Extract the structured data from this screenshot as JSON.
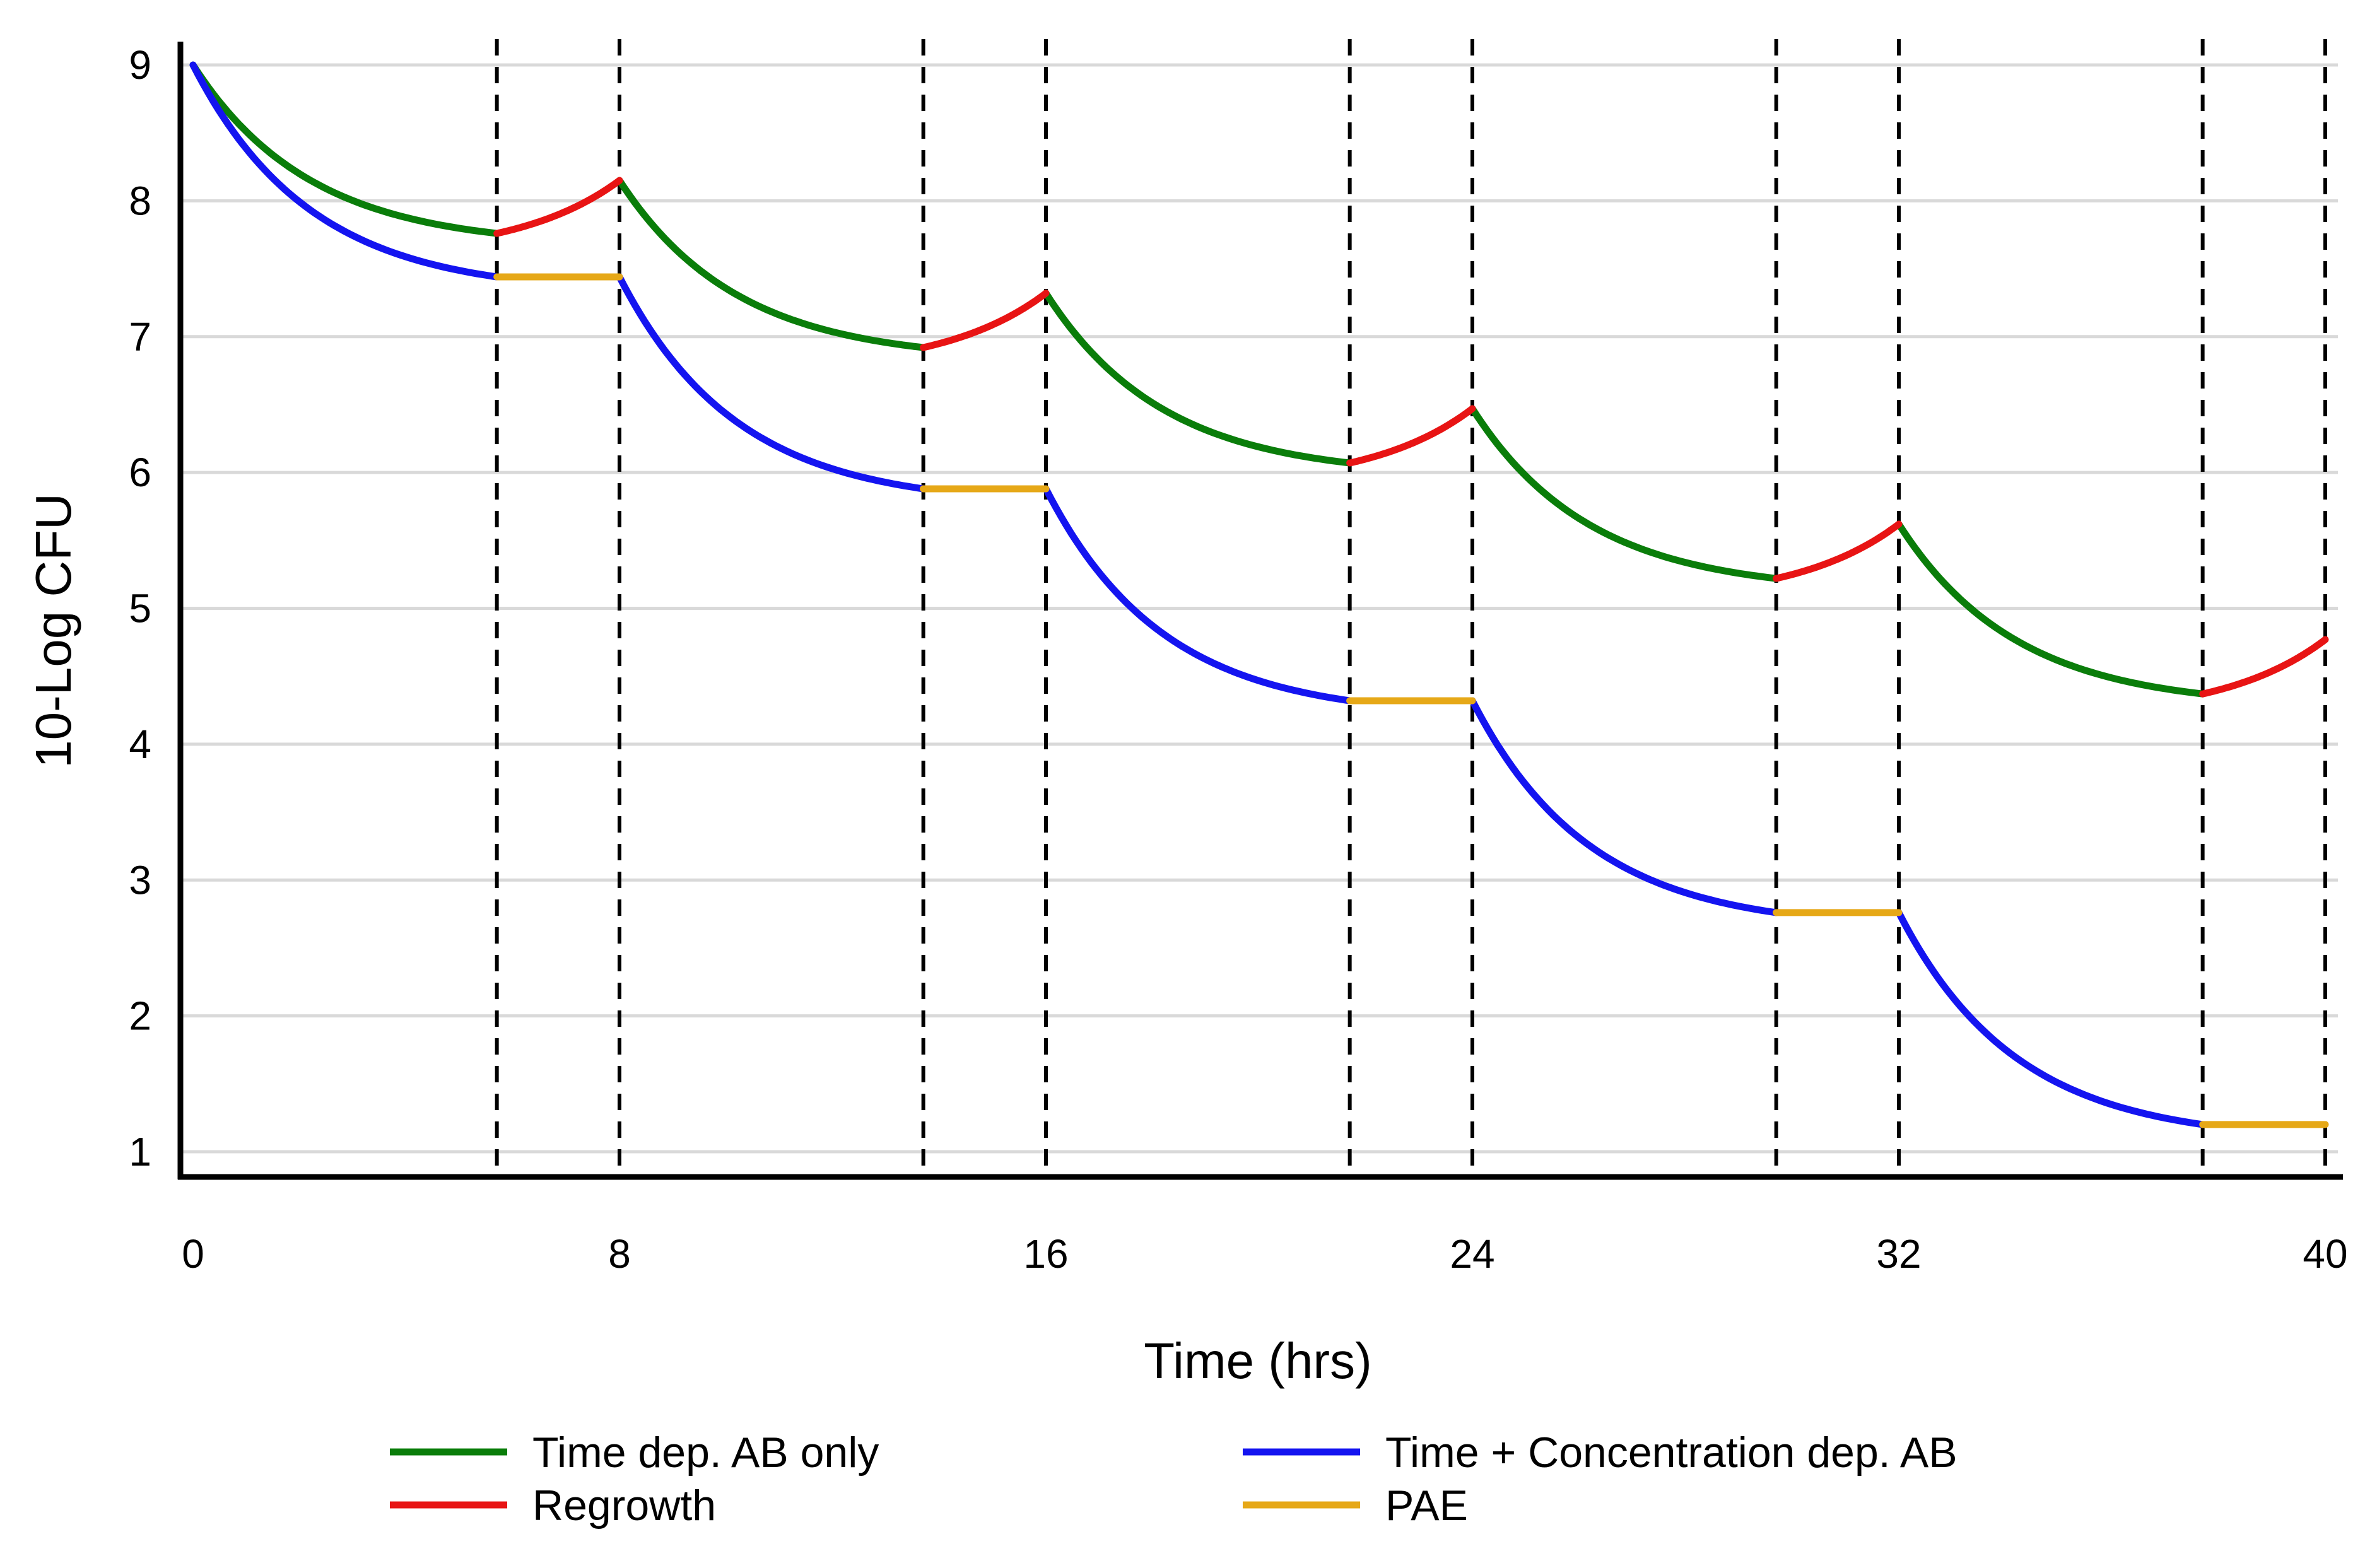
{
  "chart_data": {
    "type": "line",
    "title": "",
    "xlabel": "Time (hrs)",
    "ylabel": "10-Log CFU",
    "xlim": [
      0,
      40
    ],
    "ylim": [
      0.8,
      9.2
    ],
    "x_ticks": [
      0,
      8,
      16,
      24,
      32,
      40
    ],
    "x_tick_labels": [
      "0",
      "8",
      "16",
      "24",
      "32",
      "40"
    ],
    "y_ticks": [
      1,
      2,
      3,
      4,
      5,
      6,
      7,
      8,
      9
    ],
    "y_tick_labels": [
      "1",
      "2",
      "3",
      "4",
      "5",
      "6",
      "7",
      "8",
      "9"
    ],
    "grid": "horizontal",
    "vertical_markers": [
      5.7,
      8,
      13.7,
      16,
      21.7,
      24,
      29.7,
      32,
      37.7,
      40
    ],
    "colors": {
      "time_dep": "#0a7d0a",
      "regrowth": "#e81414",
      "time_conc": "#1414f0",
      "pae": "#e6a817",
      "grid": "#d9d9d9",
      "axis": "#000000"
    },
    "series": [
      {
        "name": "Time dep. AB only",
        "color_key": "time_dep",
        "segments": [
          {
            "start": [
              0,
              9.0
            ],
            "end": [
              5.7,
              7.76
            ],
            "shape": "decay"
          },
          {
            "start": [
              8,
              8.15
            ],
            "end": [
              13.7,
              6.92
            ],
            "shape": "decay"
          },
          {
            "start": [
              16,
              7.32
            ],
            "end": [
              21.7,
              6.07
            ],
            "shape": "decay"
          },
          {
            "start": [
              24,
              6.47
            ],
            "end": [
              29.7,
              5.22
            ],
            "shape": "decay"
          },
          {
            "start": [
              32,
              5.62
            ],
            "end": [
              37.7,
              4.37
            ],
            "shape": "decay"
          }
        ]
      },
      {
        "name": "Regrowth",
        "color_key": "regrowth",
        "segments": [
          {
            "start": [
              5.7,
              7.76
            ],
            "end": [
              8,
              8.15
            ],
            "shape": "grow"
          },
          {
            "start": [
              13.7,
              6.92
            ],
            "end": [
              16,
              7.32
            ],
            "shape": "grow"
          },
          {
            "start": [
              21.7,
              6.07
            ],
            "end": [
              24,
              6.47
            ],
            "shape": "grow"
          },
          {
            "start": [
              29.7,
              5.22
            ],
            "end": [
              32,
              5.62
            ],
            "shape": "grow"
          },
          {
            "start": [
              37.7,
              4.37
            ],
            "end": [
              40,
              4.77
            ],
            "shape": "grow"
          }
        ]
      },
      {
        "name": "Time + Concentration dep. AB",
        "color_key": "time_conc",
        "segments": [
          {
            "start": [
              0,
              9.0
            ],
            "end": [
              5.7,
              7.44
            ],
            "shape": "decay"
          },
          {
            "start": [
              8,
              7.44
            ],
            "end": [
              13.7,
              5.88
            ],
            "shape": "decay"
          },
          {
            "start": [
              16,
              5.88
            ],
            "end": [
              21.7,
              4.32
            ],
            "shape": "decay"
          },
          {
            "start": [
              24,
              4.32
            ],
            "end": [
              29.7,
              2.76
            ],
            "shape": "decay"
          },
          {
            "start": [
              32,
              2.76
            ],
            "end": [
              37.7,
              1.2
            ],
            "shape": "decay"
          }
        ]
      },
      {
        "name": "PAE",
        "color_key": "pae",
        "segments": [
          {
            "start": [
              5.7,
              7.44
            ],
            "end": [
              8,
              7.44
            ],
            "shape": "flat"
          },
          {
            "start": [
              13.7,
              5.88
            ],
            "end": [
              16,
              5.88
            ],
            "shape": "flat"
          },
          {
            "start": [
              21.7,
              4.32
            ],
            "end": [
              24,
              4.32
            ],
            "shape": "flat"
          },
          {
            "start": [
              29.7,
              2.76
            ],
            "end": [
              32,
              2.76
            ],
            "shape": "flat"
          },
          {
            "start": [
              37.7,
              1.2
            ],
            "end": [
              40,
              1.2
            ],
            "shape": "flat"
          }
        ]
      }
    ],
    "legend": {
      "position": "bottom",
      "columns": [
        [
          {
            "label": "Time dep. AB only",
            "color_key": "time_dep"
          },
          {
            "label": "Regrowth",
            "color_key": "regrowth"
          }
        ],
        [
          {
            "label": "Time + Concentration dep. AB",
            "color_key": "time_conc"
          },
          {
            "label": "PAE",
            "color_key": "pae"
          }
        ]
      ]
    }
  }
}
